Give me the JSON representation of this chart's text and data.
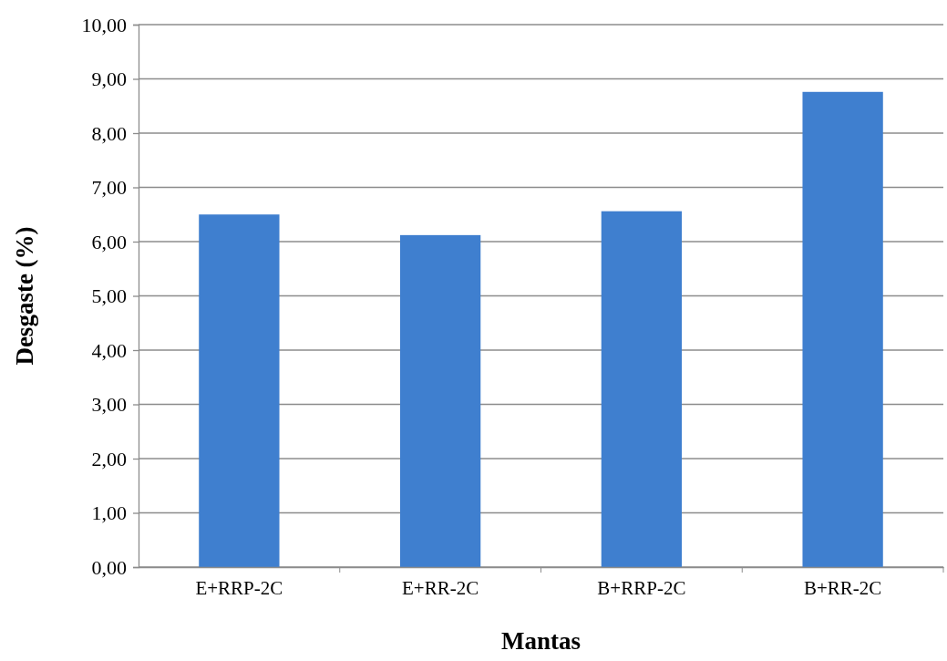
{
  "chart_data": {
    "type": "bar",
    "xlabel": "Mantas",
    "ylabel": "Desgaste (%)",
    "categories": [
      "E+RRP-2C",
      "E+RR-2C",
      "B+RRP-2C",
      "B+RR-2C"
    ],
    "values": [
      6.5,
      6.12,
      6.56,
      8.76
    ],
    "color": "#3f7fcf",
    "ylim": [
      0,
      10
    ],
    "yticks": [
      {
        "value": 0,
        "label": "0,00"
      },
      {
        "value": 1,
        "label": "1,00"
      },
      {
        "value": 2,
        "label": "2,00"
      },
      {
        "value": 3,
        "label": "3,00"
      },
      {
        "value": 4,
        "label": "4,00"
      },
      {
        "value": 5,
        "label": "5,00"
      },
      {
        "value": 6,
        "label": "6,00"
      },
      {
        "value": 7,
        "label": "7,00"
      },
      {
        "value": 8,
        "label": "8,00"
      },
      {
        "value": 9,
        "label": "9,00"
      },
      {
        "value": 10,
        "label": "10,00"
      }
    ],
    "grid": "y"
  }
}
